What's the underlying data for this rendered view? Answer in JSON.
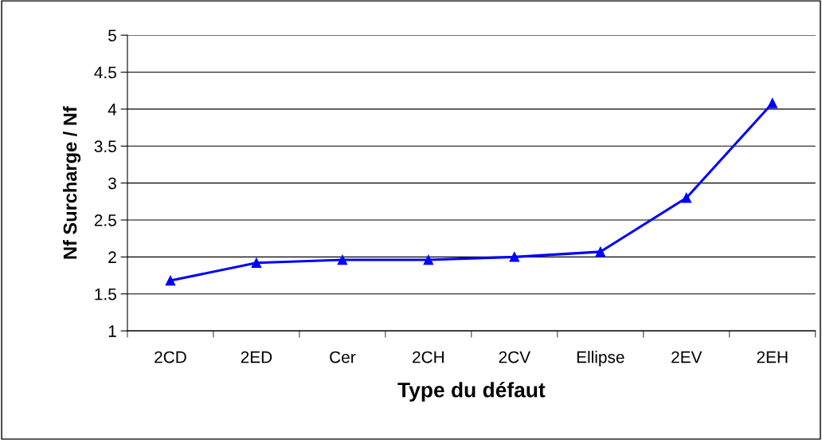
{
  "chart_data": {
    "type": "line",
    "xlabel": "Type du défaut",
    "ylabel": "Nf Surcharge / Nf",
    "categories": [
      "2CD",
      "2ED",
      "Cer",
      "2CH",
      "2CV",
      "Ellipse",
      "2EV",
      "2EH"
    ],
    "series": [
      {
        "color": "#0000ff",
        "values": [
          1.68,
          1.92,
          1.96,
          1.96,
          2.0,
          2.07,
          2.8,
          4.08
        ]
      }
    ],
    "ylim": [
      1,
      5
    ],
    "yticks": [
      1,
      1.5,
      2,
      2.5,
      3,
      3.5,
      4,
      4.5,
      5
    ],
    "grid": "y",
    "marker": "triangle",
    "line_style": "solid"
  }
}
